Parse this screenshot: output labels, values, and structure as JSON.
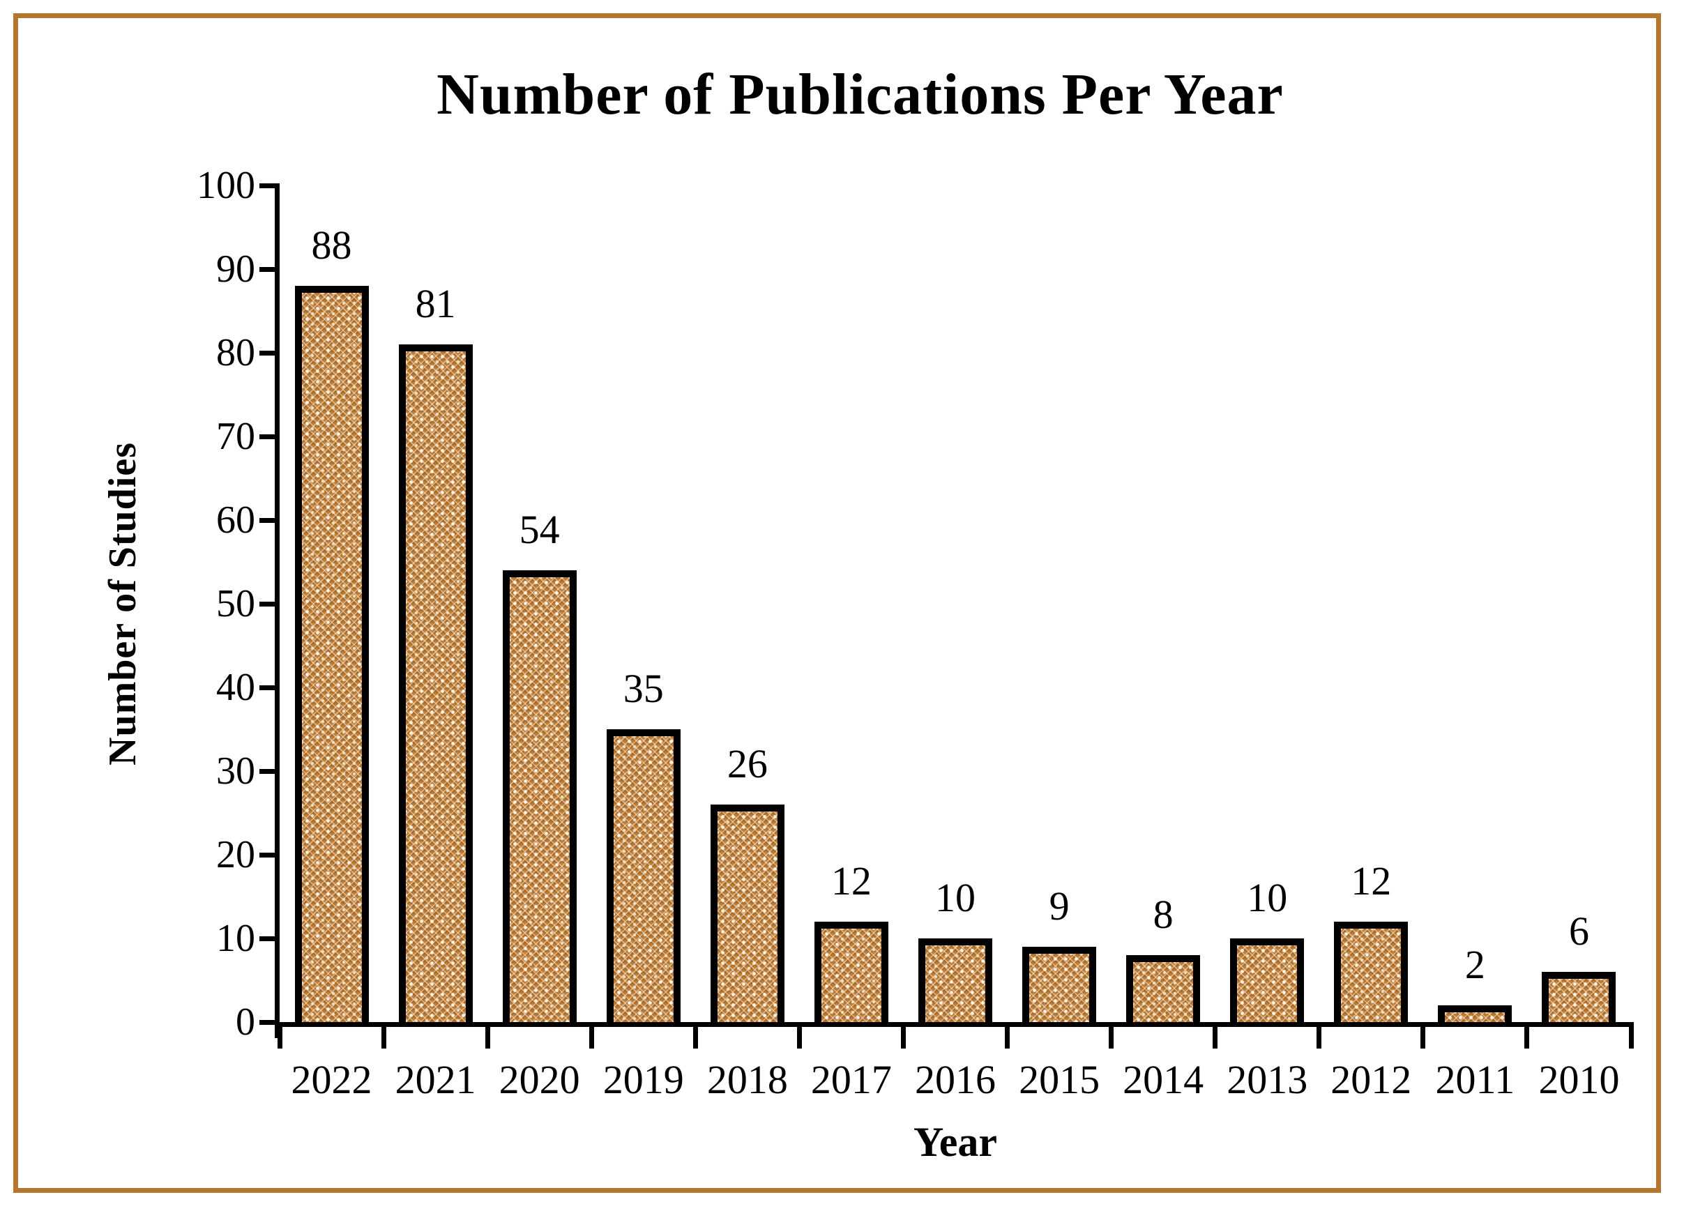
{
  "frame": {
    "border_color": "#b5772e"
  },
  "colors": {
    "axis": "#000000",
    "text": "#000000",
    "bar_fill": "#c1803a",
    "bar_border": "#000000",
    "frame_border": "#b5772e"
  },
  "chart_data": {
    "type": "bar",
    "title": "Number of Publications Per Year",
    "xlabel": "Year",
    "ylabel": "Number of Studies",
    "categories": [
      "2022",
      "2021",
      "2020",
      "2019",
      "2018",
      "2017",
      "2016",
      "2015",
      "2014",
      "2013",
      "2012",
      "2011",
      "2010"
    ],
    "values": [
      88,
      81,
      54,
      35,
      26,
      12,
      10,
      9,
      8,
      10,
      12,
      2,
      6
    ],
    "data_labels": [
      88,
      81,
      54,
      35,
      26,
      12,
      10,
      9,
      8,
      10,
      12,
      2,
      6
    ],
    "ylim": [
      0,
      100
    ],
    "y_ticks": [
      0,
      10,
      20,
      30,
      40,
      50,
      60,
      70,
      80,
      90,
      100
    ],
    "grid": false,
    "legend_position": "none",
    "bar_pattern": "dotted-diamond-crosshatch",
    "bar_fill_color": "#c1803a",
    "bar_border_color": "#000000"
  }
}
